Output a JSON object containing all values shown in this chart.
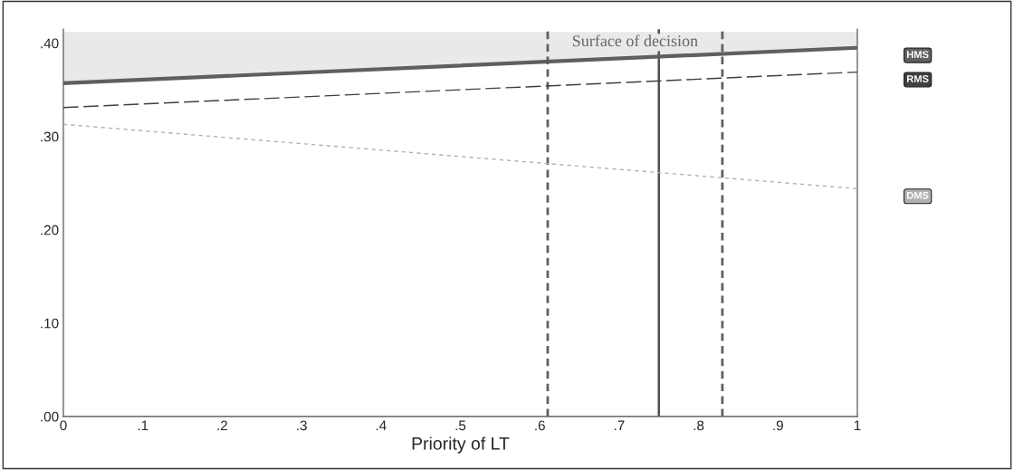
{
  "chart_data": {
    "type": "line",
    "xlabel": "Priority of LT",
    "x": [
      0,
      1
    ],
    "series": [
      {
        "name": "HMS",
        "color": "#5f5f61",
        "values": [
          0.357,
          0.395
        ],
        "line_style": "solid",
        "lower": [
          0.357,
          0.395
        ],
        "upper": [
          0.412,
          0.412
        ]
      },
      {
        "name": "RMS",
        "color": "#404040",
        "values": [
          0.331,
          0.369
        ],
        "line_style": "dashed"
      },
      {
        "name": "DMS",
        "color": "#b0b0b0",
        "values": [
          0.313,
          0.244
        ],
        "line_style": "dotted"
      }
    ],
    "xlim": [
      0,
      1
    ],
    "xticks": [
      0,
      {
        "value": 0.1,
        "label": ".1"
      },
      {
        "value": 0.2,
        "label": ".2"
      },
      {
        "value": 0.3,
        "label": ".3"
      },
      {
        "value": 0.4,
        "label": ".4"
      },
      {
        "value": 0.5,
        "label": ".5"
      },
      {
        "value": 0.6,
        "label": ".6"
      },
      {
        "value": 0.7,
        "label": ".7"
      },
      {
        "value": 0.8,
        "label": ".8"
      },
      {
        "value": 0.9,
        "label": ".9"
      },
      1
    ],
    "ylim": [
      0,
      0.415
    ],
    "yticks": [
      {
        "value": 0,
        "label": ".00"
      },
      {
        "value": 0.1,
        "label": ".10"
      },
      {
        "value": 0.2,
        "label": ".20"
      },
      {
        "value": 0.3,
        "label": ".30"
      },
      {
        "value": 0.4,
        "label": ".40"
      }
    ],
    "ref_lines": [
      {
        "axis": "x",
        "value": 0.61,
        "line_style": "dashed",
        "color": "#606060"
      },
      {
        "axis": "x",
        "value": 0.75,
        "line_style": "solid",
        "color": "#505050"
      },
      {
        "axis": "x",
        "value": 0.83,
        "line_style": "dashed",
        "color": "#606060"
      }
    ],
    "annotations": [
      "Surface of decision"
    ],
    "grid": false,
    "legend": false,
    "marker": "none"
  }
}
